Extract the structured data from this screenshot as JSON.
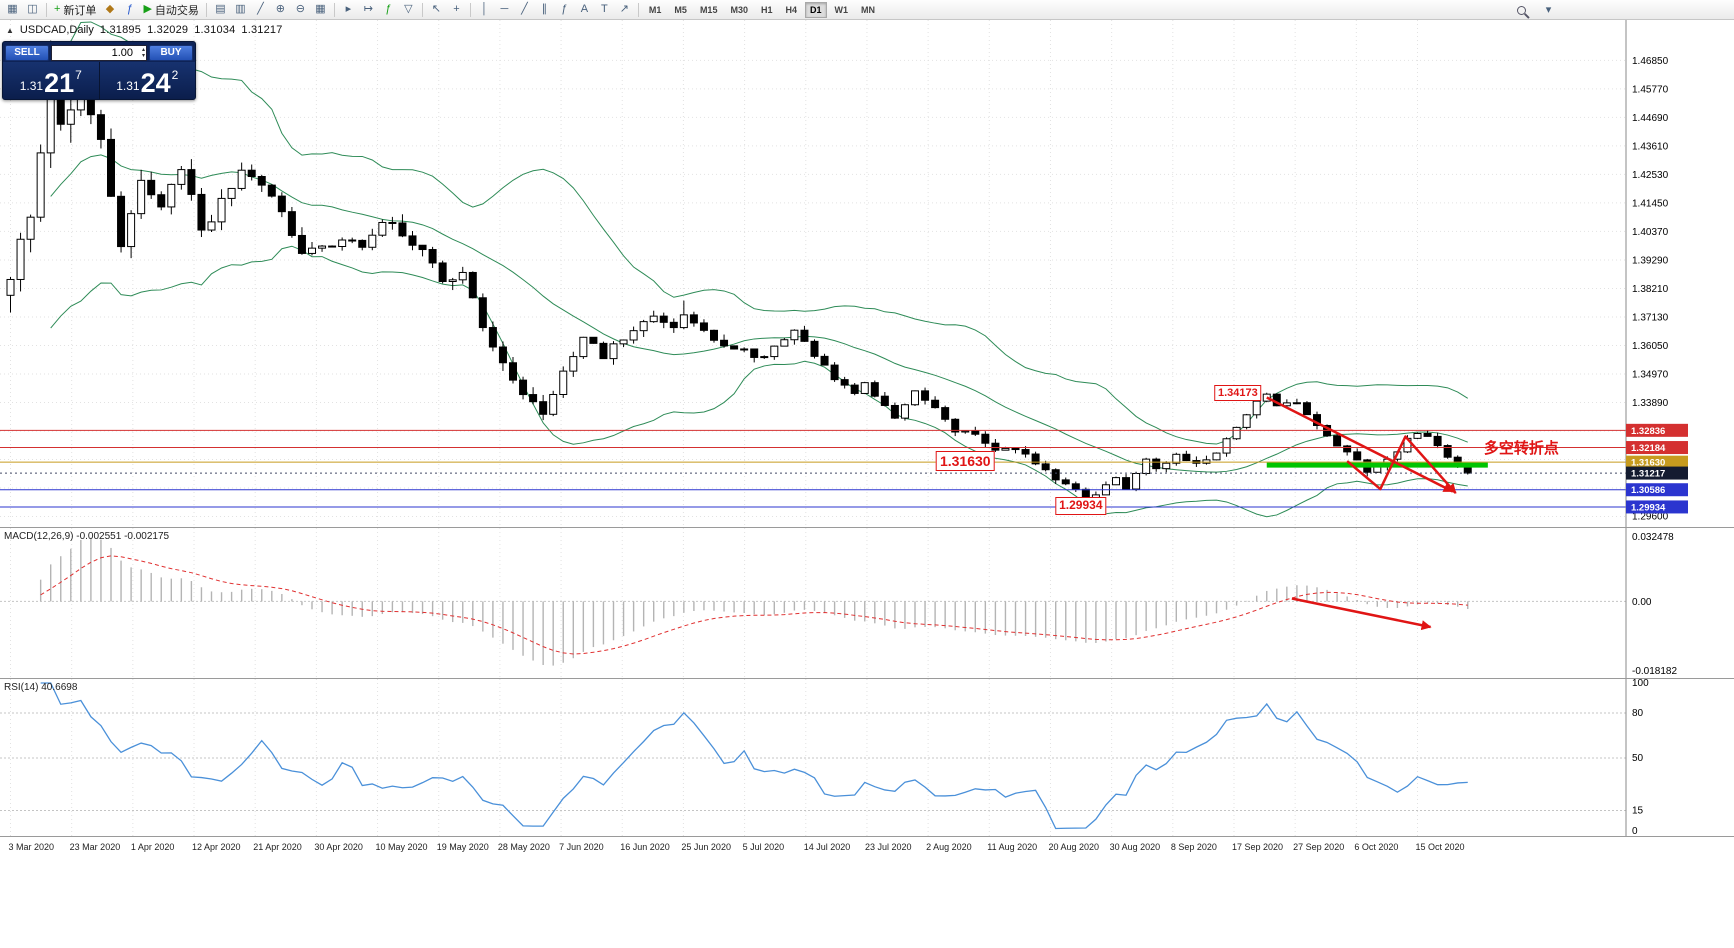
{
  "toolbar": {
    "items": [
      {
        "name": "new-chart-button",
        "glyph": "▦"
      },
      {
        "name": "profiles-button",
        "glyph": "◫"
      },
      {
        "sep": true
      },
      {
        "name": "new-order-button",
        "glyph": "+",
        "glyph_color": "#18a018",
        "label": "新订单"
      },
      {
        "name": "strategy-tester-button",
        "glyph": "◆",
        "glyph_color": "#b07818"
      },
      {
        "name": "expert-advisors-button",
        "glyph": "ƒ",
        "glyph_color": "#2255cc"
      },
      {
        "name": "autotrading-button",
        "glyph": "▶",
        "glyph_color": "#18a018",
        "label": "自动交易"
      },
      {
        "sep": true
      },
      {
        "name": "bar-chart-button",
        "glyph": "▤"
      },
      {
        "name": "candlestick-chart-button",
        "glyph": "▥"
      },
      {
        "name": "line-chart-button",
        "glyph": "╱"
      },
      {
        "name": "zoom-in-button",
        "glyph": "⊕"
      },
      {
        "name": "zoom-out-button",
        "glyph": "⊖"
      },
      {
        "name": "tile-windows-button",
        "glyph": "▦"
      },
      {
        "sep": true
      },
      {
        "name": "auto-scroll-button",
        "glyph": "▸"
      },
      {
        "name": "chart-shift-button",
        "glyph": "↦"
      },
      {
        "name": "indicators-button",
        "glyph": "ƒ",
        "glyph_color": "#18a018"
      },
      {
        "name": "objects-button",
        "glyph": "▽"
      },
      {
        "sep": true
      },
      {
        "name": "cursor-button",
        "glyph": "↖"
      },
      {
        "name": "crosshair-button",
        "glyph": "+"
      },
      {
        "sep": true
      },
      {
        "name": "vertical-line-button",
        "glyph": "│"
      },
      {
        "name": "horizontal-line-button",
        "glyph": "─"
      },
      {
        "name": "trendline-button",
        "glyph": "╱"
      },
      {
        "name": "channel-button",
        "glyph": "∥"
      },
      {
        "name": "fibonacci-button",
        "glyph": "ƒ"
      },
      {
        "name": "text-button",
        "glyph": "A"
      },
      {
        "name": "label-button",
        "glyph": "T"
      },
      {
        "name": "arrows-button",
        "glyph": "↗"
      },
      {
        "sep": true
      }
    ],
    "timeframes": [
      "M1",
      "M5",
      "M15",
      "M30",
      "H1",
      "H4",
      "D1",
      "W1",
      "MN"
    ],
    "active_timeframe": "D1",
    "right_items": [
      {
        "name": "search-button",
        "glyph": "mag"
      },
      {
        "name": "quick-menu-button",
        "glyph": "▾"
      }
    ]
  },
  "chart_header": {
    "icon": "▲",
    "symbol": "USDCAD,Daily",
    "open": "1.31895",
    "high": "1.32029",
    "low": "1.31034",
    "close": "1.31217"
  },
  "one_click": {
    "sell_label": "SELL",
    "buy_label": "BUY",
    "volume": "1.00",
    "spin_up": "▴",
    "spin_down": "▾",
    "sell_price_small": "1.31",
    "sell_price_big": "21",
    "sell_price_sup": "7",
    "buy_price_small": "1.31",
    "buy_price_big": "24",
    "buy_price_sup": "2"
  },
  "price_axis": {
    "ticks": [
      "1.46850",
      "1.45770",
      "1.44690",
      "1.43610",
      "1.42530",
      "1.41450",
      "1.40370",
      "1.39290",
      "1.38210",
      "1.37130",
      "1.36050",
      "1.34970",
      "1.33890",
      "1.29600"
    ],
    "grid_top": 1.4685,
    "grid_step": 0.0108,
    "grid_count": 17
  },
  "levels": [
    {
      "label": "1.32836",
      "price": 1.32836,
      "color": "#d43030",
      "line": true
    },
    {
      "label": "1.32184",
      "price": 1.32184,
      "color": "#d43030",
      "line": true
    },
    {
      "label": "1.31630",
      "price": 1.3163,
      "color": "#c79b1e",
      "line": true
    },
    {
      "label": "1.31217",
      "price": 1.31217,
      "color": "#141b30",
      "line": false,
      "current": true
    },
    {
      "label": "1.30586",
      "price": 1.30586,
      "color": "#2b35cf",
      "line": true
    },
    {
      "label": "1.29934",
      "price": 1.29934,
      "color": "#2b35cf",
      "line": true
    }
  ],
  "annotations": {
    "arrow_color": "#e01515",
    "turning_point": {
      "name": "turning-point-text",
      "text": "多空转折点",
      "index": 146.6,
      "price": 1.3222
    },
    "labels": [
      {
        "name": "price-label-134173",
        "text": "1.34173",
        "index": 124.5,
        "price": 1.342,
        "font": 11,
        "anchor": "right"
      },
      {
        "name": "price-label-131630",
        "text": "1.31630",
        "index": 95,
        "price": 1.3163,
        "font": 14,
        "anchor": "center"
      },
      {
        "name": "price-label-129934",
        "text": "1.29934",
        "index": 106.5,
        "price": 1.29934,
        "font": 12,
        "anchor": "center"
      }
    ],
    "green_segment": {
      "from_index": 125,
      "to_index": 147,
      "price": 1.3152,
      "color": "#00c400"
    },
    "price_arrows": [
      {
        "name": "downtrend-arrow",
        "points": [
          [
            125,
            1.3408
          ],
          [
            143.5,
            1.3052
          ]
        ]
      },
      {
        "name": "zigzag-arrow",
        "points": [
          [
            133,
            1.3167
          ],
          [
            136.3,
            1.3061
          ],
          [
            138.8,
            1.326
          ],
          [
            143.8,
            1.3046
          ]
        ]
      }
    ],
    "macd_arrow": {
      "name": "macd-downtrend-arrow",
      "points": [
        [
          127.5,
          0.47
        ],
        [
          141.3,
          0.66
        ]
      ]
    }
  },
  "macd": {
    "label": "MACD(12,26,9) -0.002551 -0.002175",
    "axis_top": "0.032478",
    "axis_zero": "0.00",
    "axis_bottom": "-0.018182"
  },
  "rsi": {
    "label": "RSI(14) 40.6698",
    "ticks": [
      [
        "100",
        100
      ],
      [
        "80",
        80
      ],
      [
        "50",
        50
      ],
      [
        "15",
        15
      ],
      [
        "0",
        0
      ]
    ],
    "levels": [
      80,
      50,
      15
    ]
  },
  "dates": [
    "3 Mar 2020",
    "23 Mar 2020",
    "1 Apr 2020",
    "12 Apr 2020",
    "21 Apr 2020",
    "30 Apr 2020",
    "10 May 2020",
    "19 May 2020",
    "28 May 2020",
    "7 Jun 2020",
    "16 Jun 2020",
    "25 Jun 2020",
    "5 Jul 2020",
    "14 Jul 2020",
    "23 Jul 2020",
    "2 Aug 2020",
    "11 Aug 2020",
    "20 Aug 2020",
    "30 Aug 2020",
    "8 Sep 2020",
    "17 Sep 2020",
    "27 Sep 2020",
    "6 Oct 2020",
    "15 Oct 2020"
  ],
  "chart_data": {
    "type": "candlestick",
    "symbol": "USDCAD",
    "timeframe": "Daily",
    "bars": 146,
    "price_range_top": 1.48,
    "price_range_bottom": 1.2925,
    "ohlc_current": {
      "open": 1.31895,
      "high": 1.32029,
      "low": 1.31034,
      "close": 1.31217
    },
    "close_anchors": [
      [
        0,
        1.383
      ],
      [
        2,
        1.412
      ],
      [
        4,
        1.452
      ],
      [
        5,
        1.444
      ],
      [
        7,
        1.458
      ],
      [
        9,
        1.436
      ],
      [
        11,
        1.401
      ],
      [
        13,
        1.422
      ],
      [
        15,
        1.413
      ],
      [
        17,
        1.429
      ],
      [
        19,
        1.402
      ],
      [
        21,
        1.414
      ],
      [
        23,
        1.428
      ],
      [
        25,
        1.419
      ],
      [
        27,
        1.411
      ],
      [
        29,
        1.395
      ],
      [
        31,
        1.397
      ],
      [
        33,
        1.402
      ],
      [
        35,
        1.398
      ],
      [
        37,
        1.408
      ],
      [
        39,
        1.403
      ],
      [
        41,
        1.397
      ],
      [
        43,
        1.386
      ],
      [
        45,
        1.389
      ],
      [
        46,
        1.38
      ],
      [
        47,
        1.368
      ],
      [
        48,
        1.358
      ],
      [
        50,
        1.348
      ],
      [
        52,
        1.339
      ],
      [
        53,
        1.336
      ],
      [
        55,
        1.35
      ],
      [
        57,
        1.364
      ],
      [
        59,
        1.357
      ],
      [
        61,
        1.363
      ],
      [
        63,
        1.37
      ],
      [
        64,
        1.3715
      ],
      [
        66,
        1.366
      ],
      [
        67,
        1.373
      ],
      [
        69,
        1.365
      ],
      [
        71,
        1.36
      ],
      [
        73,
        1.358
      ],
      [
        75,
        1.355
      ],
      [
        77,
        1.363
      ],
      [
        78,
        1.3665
      ],
      [
        80,
        1.357
      ],
      [
        82,
        1.348
      ],
      [
        84,
        1.343
      ],
      [
        85,
        1.346
      ],
      [
        87,
        1.338
      ],
      [
        88,
        1.334
      ],
      [
        90,
        1.343
      ],
      [
        92,
        1.336
      ],
      [
        94,
        1.328
      ],
      [
        96,
        1.327
      ],
      [
        98,
        1.321
      ],
      [
        100,
        1.322
      ],
      [
        102,
        1.316
      ],
      [
        104,
        1.31
      ],
      [
        106,
        1.305
      ],
      [
        107,
        1.3015
      ],
      [
        108,
        1.304
      ],
      [
        110,
        1.31
      ],
      [
        111,
        1.307
      ],
      [
        113,
        1.317
      ],
      [
        114,
        1.3135
      ],
      [
        116,
        1.319
      ],
      [
        118,
        1.316
      ],
      [
        120,
        1.32
      ],
      [
        122,
        1.33
      ],
      [
        124,
        1.3395
      ],
      [
        125,
        1.3415
      ],
      [
        126,
        1.3375
      ],
      [
        128,
        1.338
      ],
      [
        129,
        1.3335
      ],
      [
        131,
        1.327
      ],
      [
        133,
        1.32
      ],
      [
        135,
        1.3125
      ],
      [
        136,
        1.3145
      ],
      [
        138,
        1.321
      ],
      [
        140,
        1.328
      ],
      [
        141,
        1.326
      ],
      [
        143,
        1.318
      ],
      [
        145,
        1.3122
      ]
    ],
    "volatility_anchors": [
      [
        0,
        0.013
      ],
      [
        6,
        0.014
      ],
      [
        12,
        0.009
      ],
      [
        20,
        0.007
      ],
      [
        30,
        0.006
      ],
      [
        45,
        0.0062
      ],
      [
        55,
        0.005
      ],
      [
        70,
        0.004
      ],
      [
        85,
        0.0035
      ],
      [
        100,
        0.003
      ],
      [
        115,
        0.0028
      ],
      [
        130,
        0.0032
      ],
      [
        145,
        0.0026
      ]
    ],
    "wick_overrides": [
      [
        4,
        1.476,
        null
      ],
      [
        7,
        1.47,
        null
      ],
      [
        67,
        1.3775,
        null
      ],
      [
        107,
        null,
        1.2994
      ],
      [
        125,
        1.3417,
        null
      ]
    ],
    "bollinger": {
      "period": 20,
      "deviation": 2
    },
    "indicators": {
      "macd": {
        "fast": 12,
        "slow": 26,
        "signal": 9,
        "value": -0.002551,
        "signal_value": -0.002175
      },
      "rsi": {
        "period": 14,
        "value": 40.6698
      }
    },
    "style": {
      "bull": "#ffffff",
      "bear": "#000000",
      "wick": "#000000",
      "bollinger": "#2E8B57",
      "histogram": "#b4b4b4",
      "signal": "#e03030",
      "rsi_line": "#4a90d9",
      "grid": "#e2e2e2"
    }
  }
}
